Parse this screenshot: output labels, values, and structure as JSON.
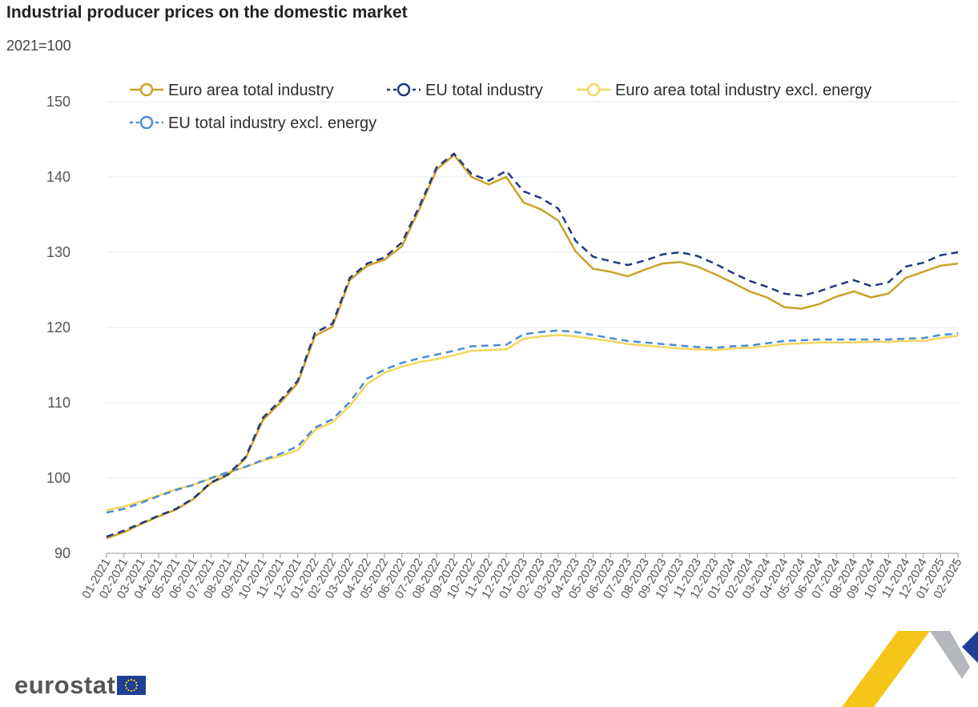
{
  "header": {
    "title": "Industrial producer prices on the domestic market",
    "subtitle": "2021=100"
  },
  "branding": {
    "logo_text": "eurostat"
  },
  "chart_data": {
    "type": "line",
    "title": "Industrial producer prices on the domestic market",
    "subtitle": "2021=100",
    "xlabel": "",
    "ylabel": "",
    "ylim": [
      90,
      150
    ],
    "yticks": [
      90,
      100,
      110,
      120,
      130,
      140,
      150
    ],
    "grid": true,
    "legend_position": "top",
    "categories": [
      "01-2021",
      "02-2021",
      "03-2021",
      "04-2021",
      "05-2021",
      "06-2021",
      "07-2021",
      "08-2021",
      "09-2021",
      "10-2021",
      "11-2021",
      "12-2021",
      "01-2022",
      "02-2022",
      "03-2022",
      "04-2022",
      "05-2022",
      "06-2022",
      "07-2022",
      "08-2022",
      "09-2022",
      "10-2022",
      "11-2022",
      "12-2022",
      "01-2023",
      "02-2023",
      "03-2023",
      "04-2023",
      "05-2023",
      "06-2023",
      "07-2023",
      "08-2023",
      "09-2023",
      "10-2023",
      "11-2023",
      "12-2023",
      "01-2024",
      "02-2024",
      "03-2024",
      "04-2024",
      "05-2024",
      "06-2024",
      "07-2024",
      "08-2024",
      "09-2024",
      "10-2024",
      "11-2024",
      "12-2024",
      "01-2025",
      "02-2025"
    ],
    "series": [
      {
        "name": "Euro area total industry",
        "color": "#c9a227",
        "dash": "solid",
        "values": [
          92.0,
          92.8,
          93.9,
          94.9,
          95.8,
          97.2,
          99.3,
          100.4,
          102.6,
          107.7,
          110.0,
          112.6,
          118.9,
          120.1,
          126.3,
          128.2,
          129.0,
          130.8,
          135.7,
          141.0,
          142.9,
          140.0,
          139.0,
          140.0,
          136.6,
          135.7,
          134.2,
          130.1,
          127.8,
          127.4,
          126.8,
          127.7,
          128.5,
          128.7,
          128.1,
          127.1,
          126.0,
          124.8,
          124.0,
          122.7,
          122.5,
          123.1,
          124.1,
          124.8,
          124.0,
          124.5,
          126.6,
          127.4,
          128.2,
          128.5
        ]
      },
      {
        "name": "EU total industry",
        "color": "#1f3a80",
        "dash": "dashed",
        "values": [
          92.2,
          93.0,
          94.0,
          95.0,
          95.9,
          97.3,
          99.4,
          100.5,
          102.8,
          108.0,
          110.3,
          112.9,
          119.3,
          120.5,
          126.6,
          128.5,
          129.3,
          131.3,
          136.1,
          141.3,
          143.1,
          140.4,
          139.5,
          140.8,
          138.1,
          137.2,
          135.8,
          131.5,
          129.4,
          128.8,
          128.3,
          128.9,
          129.7,
          130.0,
          129.5,
          128.5,
          127.3,
          126.2,
          125.4,
          124.5,
          124.2,
          124.8,
          125.6,
          126.3,
          125.5,
          126.0,
          128.1,
          128.6,
          129.6,
          130.0
        ]
      },
      {
        "name": "Euro area total industry excl. energy",
        "color": "#f2d760",
        "dash": "solid",
        "values": [
          95.7,
          96.2,
          96.9,
          97.7,
          98.5,
          99.1,
          99.9,
          100.7,
          101.5,
          102.3,
          102.9,
          103.7,
          106.4,
          107.4,
          109.6,
          112.5,
          114.0,
          114.8,
          115.4,
          115.8,
          116.3,
          116.9,
          117.0,
          117.1,
          118.5,
          118.8,
          119.0,
          118.8,
          118.5,
          118.2,
          117.8,
          117.6,
          117.4,
          117.2,
          117.1,
          117.0,
          117.2,
          117.3,
          117.5,
          117.8,
          117.9,
          118.0,
          118.0,
          118.0,
          118.1,
          118.1,
          118.2,
          118.2,
          118.6,
          118.9
        ]
      },
      {
        "name": "EU total industry excl. energy",
        "color": "#4a8cd6",
        "dash": "dashed",
        "values": [
          95.4,
          95.9,
          96.7,
          97.6,
          98.4,
          99.1,
          100.0,
          100.8,
          101.5,
          102.4,
          103.2,
          104.2,
          106.7,
          107.8,
          110.1,
          113.2,
          114.4,
          115.3,
          115.9,
          116.4,
          116.9,
          117.5,
          117.6,
          117.7,
          119.1,
          119.4,
          119.6,
          119.4,
          119.0,
          118.6,
          118.2,
          118.0,
          117.8,
          117.6,
          117.4,
          117.3,
          117.5,
          117.6,
          117.9,
          118.2,
          118.3,
          118.4,
          118.4,
          118.4,
          118.4,
          118.4,
          118.5,
          118.6,
          119.0,
          119.2
        ]
      }
    ]
  }
}
